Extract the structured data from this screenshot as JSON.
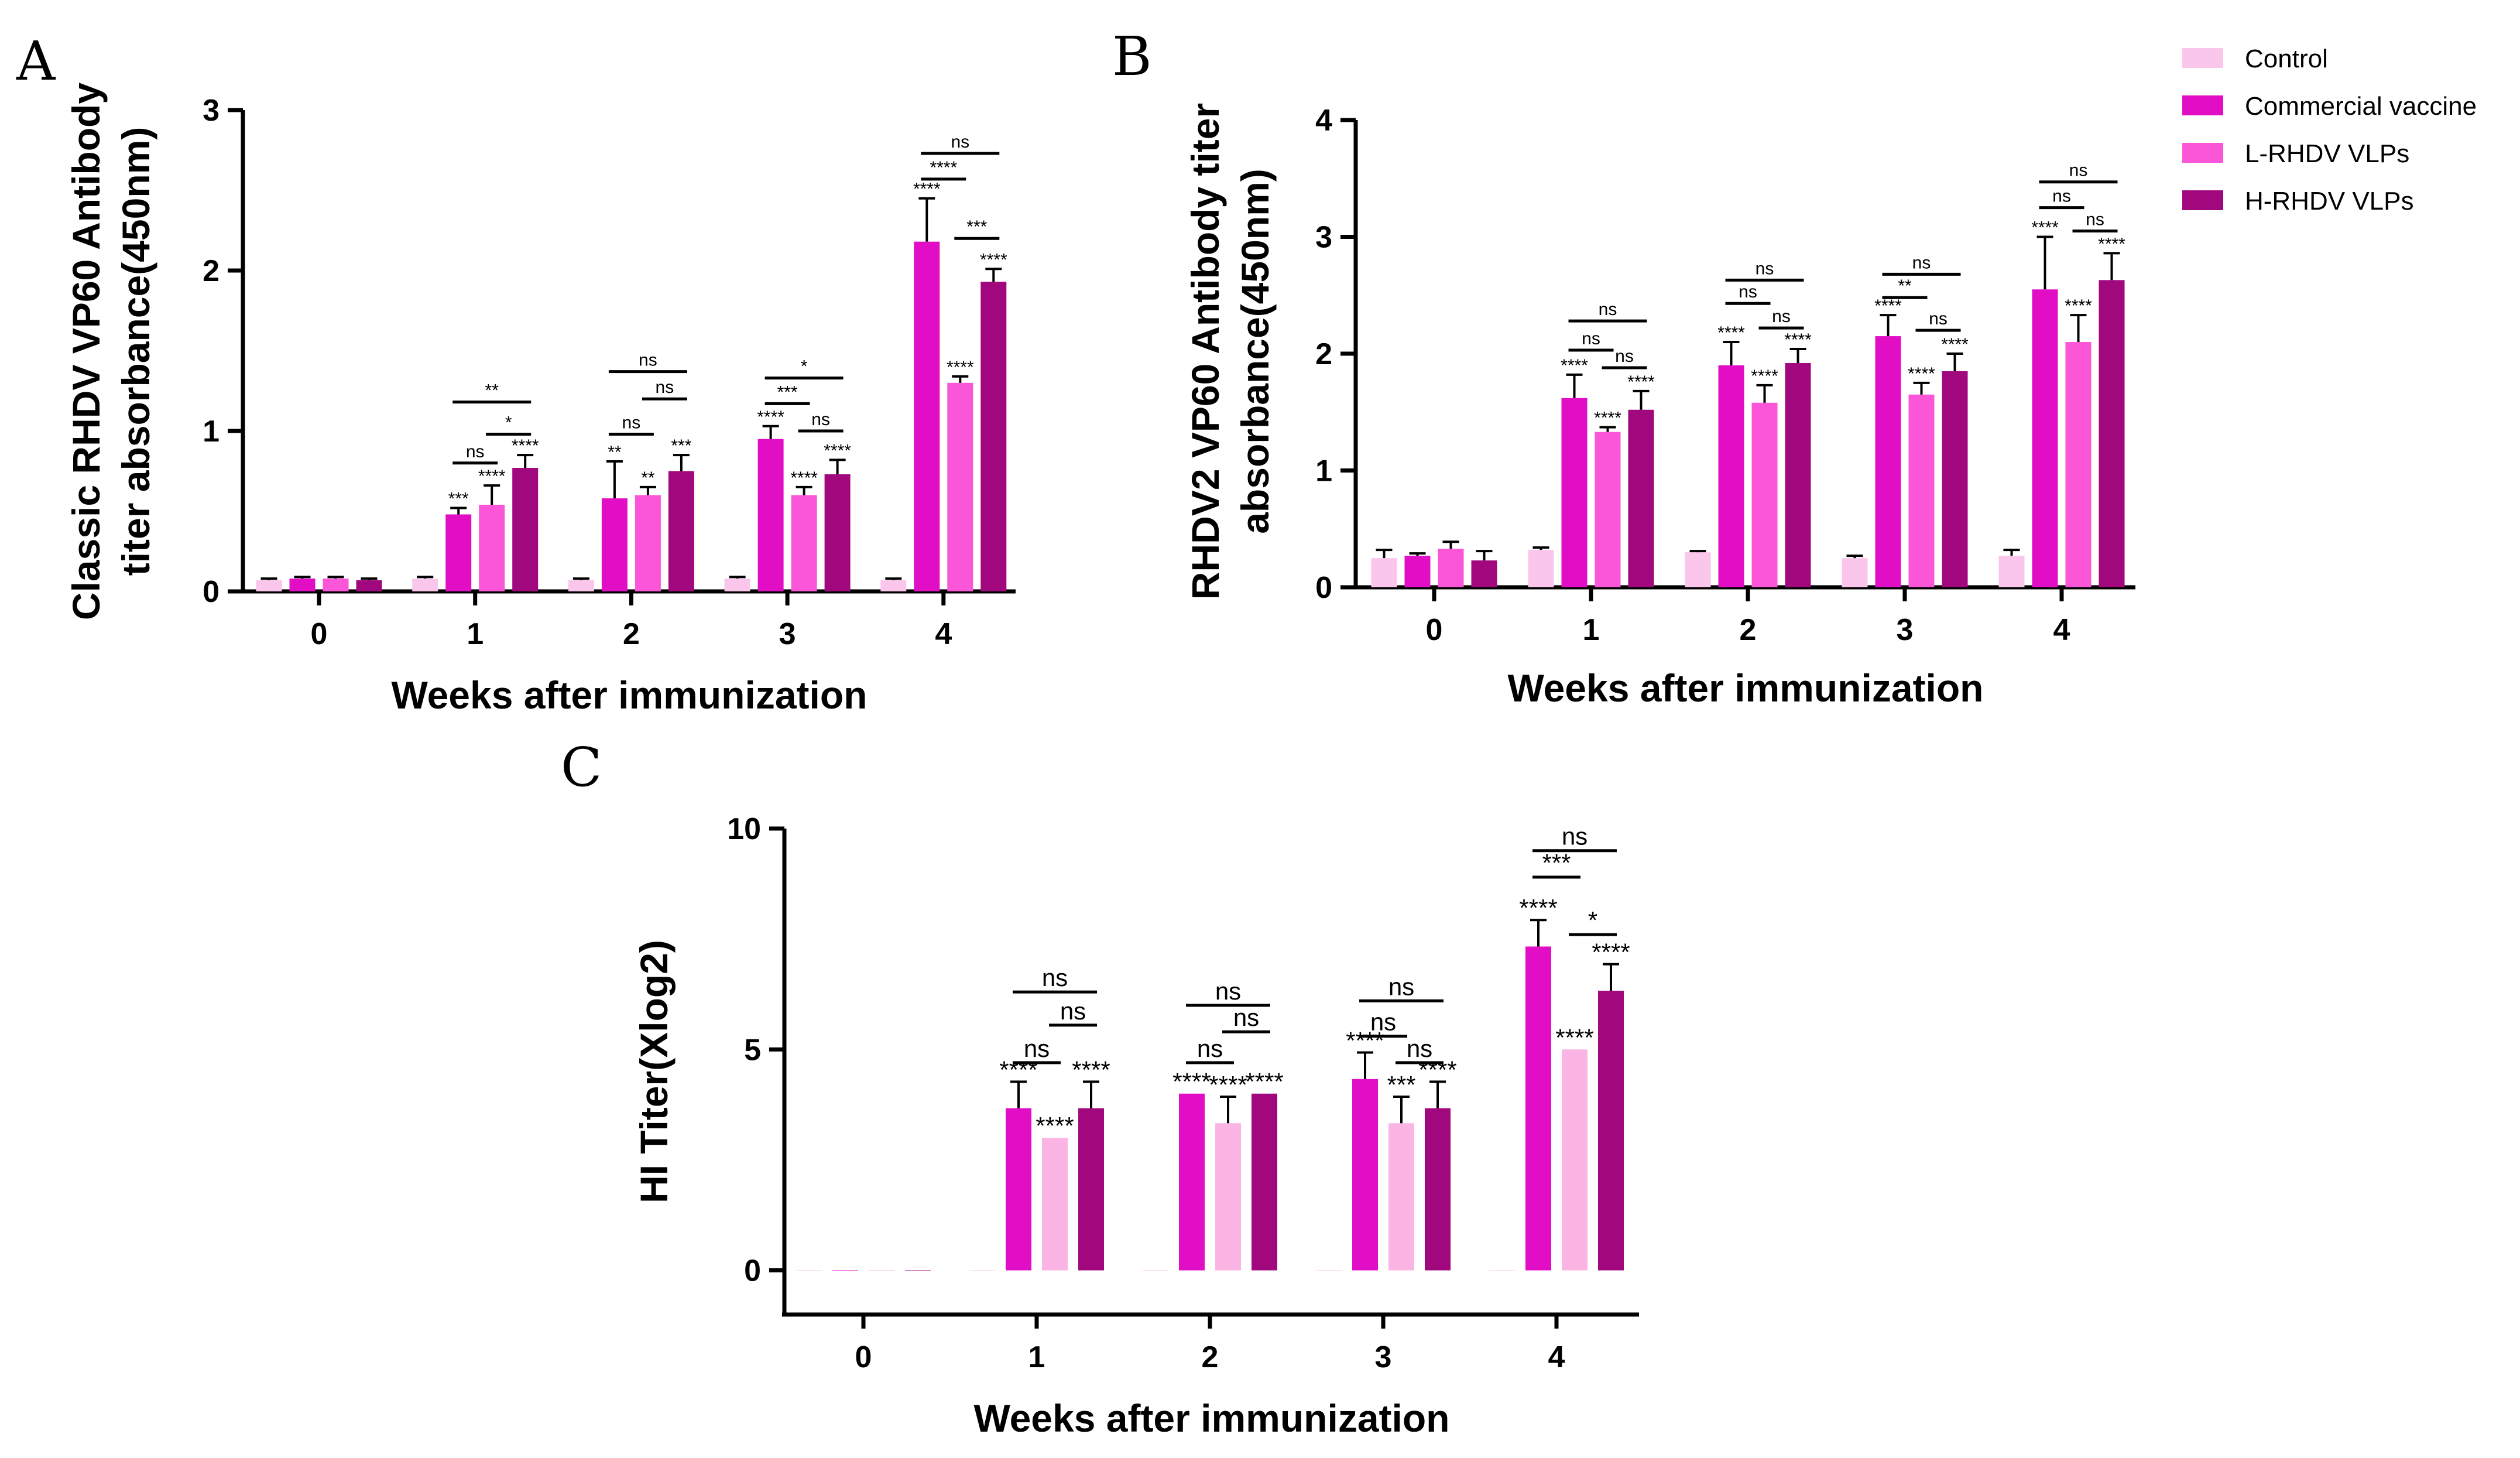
{
  "legend": [
    {
      "name": "Control",
      "color": "#fbc6ec"
    },
    {
      "name": "Commercial vaccine",
      "color": "#e10ec5"
    },
    {
      "name": "L-RHDV VLPs",
      "color": "#fb55d8"
    },
    {
      "name": "H-RHDV VLPs",
      "color": "#a1087e"
    }
  ],
  "chart_data": [
    {
      "panel": "A",
      "type": "bar",
      "ylabel_lines": [
        "Classic RHDV VP60 Antibody",
        "titer absorbance(450nm)"
      ],
      "xlabel": "Weeks after immunization",
      "categories": [
        "0",
        "1",
        "2",
        "3",
        "4"
      ],
      "ylim": [
        0,
        3
      ],
      "yticks": [
        "0",
        "1",
        "2",
        "3"
      ],
      "series": [
        {
          "name": "Control",
          "color": "#fbc6ec",
          "values": [
            0.07,
            0.08,
            0.07,
            0.08,
            0.07
          ],
          "err": [
            0.01,
            0.01,
            0.01,
            0.01,
            0.01
          ]
        },
        {
          "name": "Commercial vaccine",
          "color": "#e10ec5",
          "values": [
            0.08,
            0.48,
            0.58,
            0.95,
            2.18
          ],
          "err": [
            0.01,
            0.04,
            0.23,
            0.08,
            0.27
          ]
        },
        {
          "name": "L-RHDV VLPs",
          "color": "#fb55d8",
          "values": [
            0.08,
            0.54,
            0.6,
            0.6,
            1.3
          ],
          "err": [
            0.01,
            0.12,
            0.05,
            0.05,
            0.04
          ]
        },
        {
          "name": "H-RHDV VLPs",
          "color": "#a1087e",
          "values": [
            0.07,
            0.77,
            0.75,
            0.73,
            1.93
          ],
          "err": [
            0.01,
            0.08,
            0.1,
            0.09,
            0.08
          ]
        }
      ],
      "stars": [
        {
          "cat": 1,
          "s": 1,
          "t": "***"
        },
        {
          "cat": 1,
          "s": 2,
          "t": "****"
        },
        {
          "cat": 1,
          "s": 3,
          "t": "****"
        },
        {
          "cat": 2,
          "s": 1,
          "t": "**"
        },
        {
          "cat": 2,
          "s": 2,
          "t": "**"
        },
        {
          "cat": 2,
          "s": 3,
          "t": "***"
        },
        {
          "cat": 3,
          "s": 1,
          "t": "****"
        },
        {
          "cat": 3,
          "s": 2,
          "t": "****"
        },
        {
          "cat": 3,
          "s": 3,
          "t": "****"
        },
        {
          "cat": 4,
          "s": 1,
          "t": "****"
        },
        {
          "cat": 4,
          "s": 2,
          "t": "****"
        },
        {
          "cat": 4,
          "s": 3,
          "t": "****"
        }
      ],
      "brackets": [
        {
          "cat": 1,
          "from": 1,
          "to": 3,
          "y": 1.18,
          "t": "**"
        },
        {
          "cat": 1,
          "from": 1,
          "to": 2,
          "y": 0.8,
          "t": "ns"
        },
        {
          "cat": 1,
          "from": 2,
          "to": 3,
          "y": 0.98,
          "t": "*"
        },
        {
          "cat": 2,
          "from": 1,
          "to": 3,
          "y": 1.37,
          "t": "ns"
        },
        {
          "cat": 2,
          "from": 1,
          "to": 2,
          "y": 0.98,
          "t": "ns"
        },
        {
          "cat": 2,
          "from": 2,
          "to": 3,
          "y": 1.2,
          "t": "ns"
        },
        {
          "cat": 3,
          "from": 1,
          "to": 3,
          "y": 1.33,
          "t": "*"
        },
        {
          "cat": 3,
          "from": 1,
          "to": 2,
          "y": 1.17,
          "t": "***"
        },
        {
          "cat": 3,
          "from": 2,
          "to": 3,
          "y": 1.0,
          "t": "ns"
        },
        {
          "cat": 4,
          "from": 1,
          "to": 3,
          "y": 2.73,
          "t": "ns"
        },
        {
          "cat": 4,
          "from": 1,
          "to": 2,
          "y": 2.57,
          "t": "****"
        },
        {
          "cat": 4,
          "from": 2,
          "to": 3,
          "y": 2.2,
          "t": "***"
        }
      ]
    },
    {
      "panel": "B",
      "type": "bar",
      "ylabel_lines": [
        "RHDV2 VP60 Antibody titer",
        "absorbance(450nm)"
      ],
      "xlabel": "Weeks after immunization",
      "categories": [
        "0",
        "1",
        "2",
        "3",
        "4"
      ],
      "ylim": [
        0,
        4
      ],
      "yticks": [
        "0",
        "1",
        "2",
        "3",
        "4"
      ],
      "series": [
        {
          "name": "Control",
          "color": "#fbc6ec",
          "values": [
            0.25,
            0.32,
            0.3,
            0.25,
            0.27
          ],
          "err": [
            0.07,
            0.02,
            0.01,
            0.02,
            0.05
          ]
        },
        {
          "name": "Commercial vaccine",
          "color": "#e10ec5",
          "values": [
            0.27,
            1.62,
            1.9,
            2.15,
            2.55
          ],
          "err": [
            0.02,
            0.2,
            0.2,
            0.18,
            0.45
          ]
        },
        {
          "name": "L-RHDV VLPs",
          "color": "#fb55d8",
          "values": [
            0.33,
            1.33,
            1.58,
            1.65,
            2.1
          ],
          "err": [
            0.06,
            0.04,
            0.15,
            0.1,
            0.23
          ]
        },
        {
          "name": "H-RHDV VLPs",
          "color": "#a1087e",
          "values": [
            0.23,
            1.52,
            1.92,
            1.85,
            2.63
          ],
          "err": [
            0.08,
            0.16,
            0.12,
            0.15,
            0.23
          ]
        }
      ],
      "stars": [
        {
          "cat": 1,
          "s": 1,
          "t": "****"
        },
        {
          "cat": 1,
          "s": 2,
          "t": "****"
        },
        {
          "cat": 1,
          "s": 3,
          "t": "****"
        },
        {
          "cat": 2,
          "s": 1,
          "t": "****"
        },
        {
          "cat": 2,
          "s": 2,
          "t": "****"
        },
        {
          "cat": 2,
          "s": 3,
          "t": "****"
        },
        {
          "cat": 3,
          "s": 1,
          "t": "****"
        },
        {
          "cat": 3,
          "s": 2,
          "t": "****"
        },
        {
          "cat": 3,
          "s": 3,
          "t": "****"
        },
        {
          "cat": 4,
          "s": 1,
          "t": "****"
        },
        {
          "cat": 4,
          "s": 2,
          "t": "****"
        },
        {
          "cat": 4,
          "s": 3,
          "t": "****"
        }
      ],
      "brackets": [
        {
          "cat": 1,
          "from": 1,
          "to": 3,
          "y": 2.28,
          "t": "ns"
        },
        {
          "cat": 1,
          "from": 1,
          "to": 2,
          "y": 2.03,
          "t": "ns"
        },
        {
          "cat": 1,
          "from": 2,
          "to": 3,
          "y": 1.88,
          "t": "ns"
        },
        {
          "cat": 2,
          "from": 1,
          "to": 3,
          "y": 2.63,
          "t": "ns"
        },
        {
          "cat": 2,
          "from": 1,
          "to": 2,
          "y": 2.43,
          "t": "ns"
        },
        {
          "cat": 2,
          "from": 2,
          "to": 3,
          "y": 2.22,
          "t": "ns"
        },
        {
          "cat": 3,
          "from": 1,
          "to": 3,
          "y": 2.68,
          "t": "ns"
        },
        {
          "cat": 3,
          "from": 1,
          "to": 2,
          "y": 2.48,
          "t": "**"
        },
        {
          "cat": 3,
          "from": 2,
          "to": 3,
          "y": 2.2,
          "t": "ns"
        },
        {
          "cat": 4,
          "from": 1,
          "to": 3,
          "y": 3.47,
          "t": "ns"
        },
        {
          "cat": 4,
          "from": 1,
          "to": 2,
          "y": 3.25,
          "t": "ns"
        },
        {
          "cat": 4,
          "from": 2,
          "to": 3,
          "y": 3.05,
          "t": "ns"
        }
      ]
    },
    {
      "panel": "C",
      "type": "bar",
      "ylabel_lines": [
        "HI Titer(Xlog2)"
      ],
      "xlabel": "Weeks after immunization",
      "categories": [
        "0",
        "1",
        "2",
        "3",
        "4"
      ],
      "ylim": [
        -1,
        10
      ],
      "yticks": [
        "0",
        "5",
        "10"
      ],
      "ytick_values": [
        0,
        5,
        10
      ],
      "series": [
        {
          "name": "Control",
          "color": "#fbc6ec",
          "values": [
            0,
            0,
            0,
            0,
            0
          ],
          "err": [
            0,
            0,
            0,
            0,
            0
          ]
        },
        {
          "name": "Commercial vaccine",
          "color": "#e10ec5",
          "values": [
            0,
            3.67,
            4.0,
            4.33,
            7.33
          ],
          "err": [
            0,
            0.6,
            0,
            0.6,
            0.6
          ]
        },
        {
          "name": "L-RHDV VLPs",
          "color": "#fbb5e4",
          "values": [
            0,
            3.0,
            3.33,
            3.33,
            5.0
          ],
          "err": [
            0,
            0,
            0.6,
            0.6,
            0
          ]
        },
        {
          "name": "H-RHDV VLPs",
          "color": "#a1087e",
          "values": [
            0,
            3.67,
            4.0,
            3.67,
            6.33
          ],
          "err": [
            0,
            0.6,
            0,
            0.6,
            0.6
          ]
        }
      ],
      "stars": [
        {
          "cat": 1,
          "s": 1,
          "t": "****"
        },
        {
          "cat": 1,
          "s": 2,
          "t": "****"
        },
        {
          "cat": 1,
          "s": 3,
          "t": "****"
        },
        {
          "cat": 2,
          "s": 1,
          "t": "****"
        },
        {
          "cat": 2,
          "s": 2,
          "t": "****"
        },
        {
          "cat": 2,
          "s": 3,
          "t": "****"
        },
        {
          "cat": 3,
          "s": 1,
          "t": "****"
        },
        {
          "cat": 3,
          "s": 2,
          "t": "***"
        },
        {
          "cat": 3,
          "s": 3,
          "t": "****"
        },
        {
          "cat": 4,
          "s": 1,
          "t": "****"
        },
        {
          "cat": 4,
          "s": 2,
          "t": "****"
        },
        {
          "cat": 4,
          "s": 3,
          "t": "****"
        }
      ],
      "brackets": [
        {
          "cat": 1,
          "from": 1,
          "to": 3,
          "y": 6.3,
          "t": "ns"
        },
        {
          "cat": 1,
          "from": 1,
          "to": 2,
          "y": 4.7,
          "t": "ns"
        },
        {
          "cat": 1,
          "from": 2,
          "to": 3,
          "y": 5.55,
          "t": "ns"
        },
        {
          "cat": 2,
          "from": 1,
          "to": 3,
          "y": 6.0,
          "t": "ns"
        },
        {
          "cat": 2,
          "from": 1,
          "to": 2,
          "y": 4.7,
          "t": "ns"
        },
        {
          "cat": 2,
          "from": 2,
          "to": 3,
          "y": 5.4,
          "t": "ns"
        },
        {
          "cat": 3,
          "from": 1,
          "to": 3,
          "y": 6.1,
          "t": "ns"
        },
        {
          "cat": 3,
          "from": 1,
          "to": 2,
          "y": 5.3,
          "t": "ns"
        },
        {
          "cat": 3,
          "from": 2,
          "to": 3,
          "y": 4.7,
          "t": "ns"
        },
        {
          "cat": 4,
          "from": 1,
          "to": 3,
          "y": 9.5,
          "t": "ns"
        },
        {
          "cat": 4,
          "from": 1,
          "to": 2,
          "y": 8.9,
          "t": "***"
        },
        {
          "cat": 4,
          "from": 2,
          "to": 3,
          "y": 7.6,
          "t": "*"
        }
      ]
    }
  ]
}
